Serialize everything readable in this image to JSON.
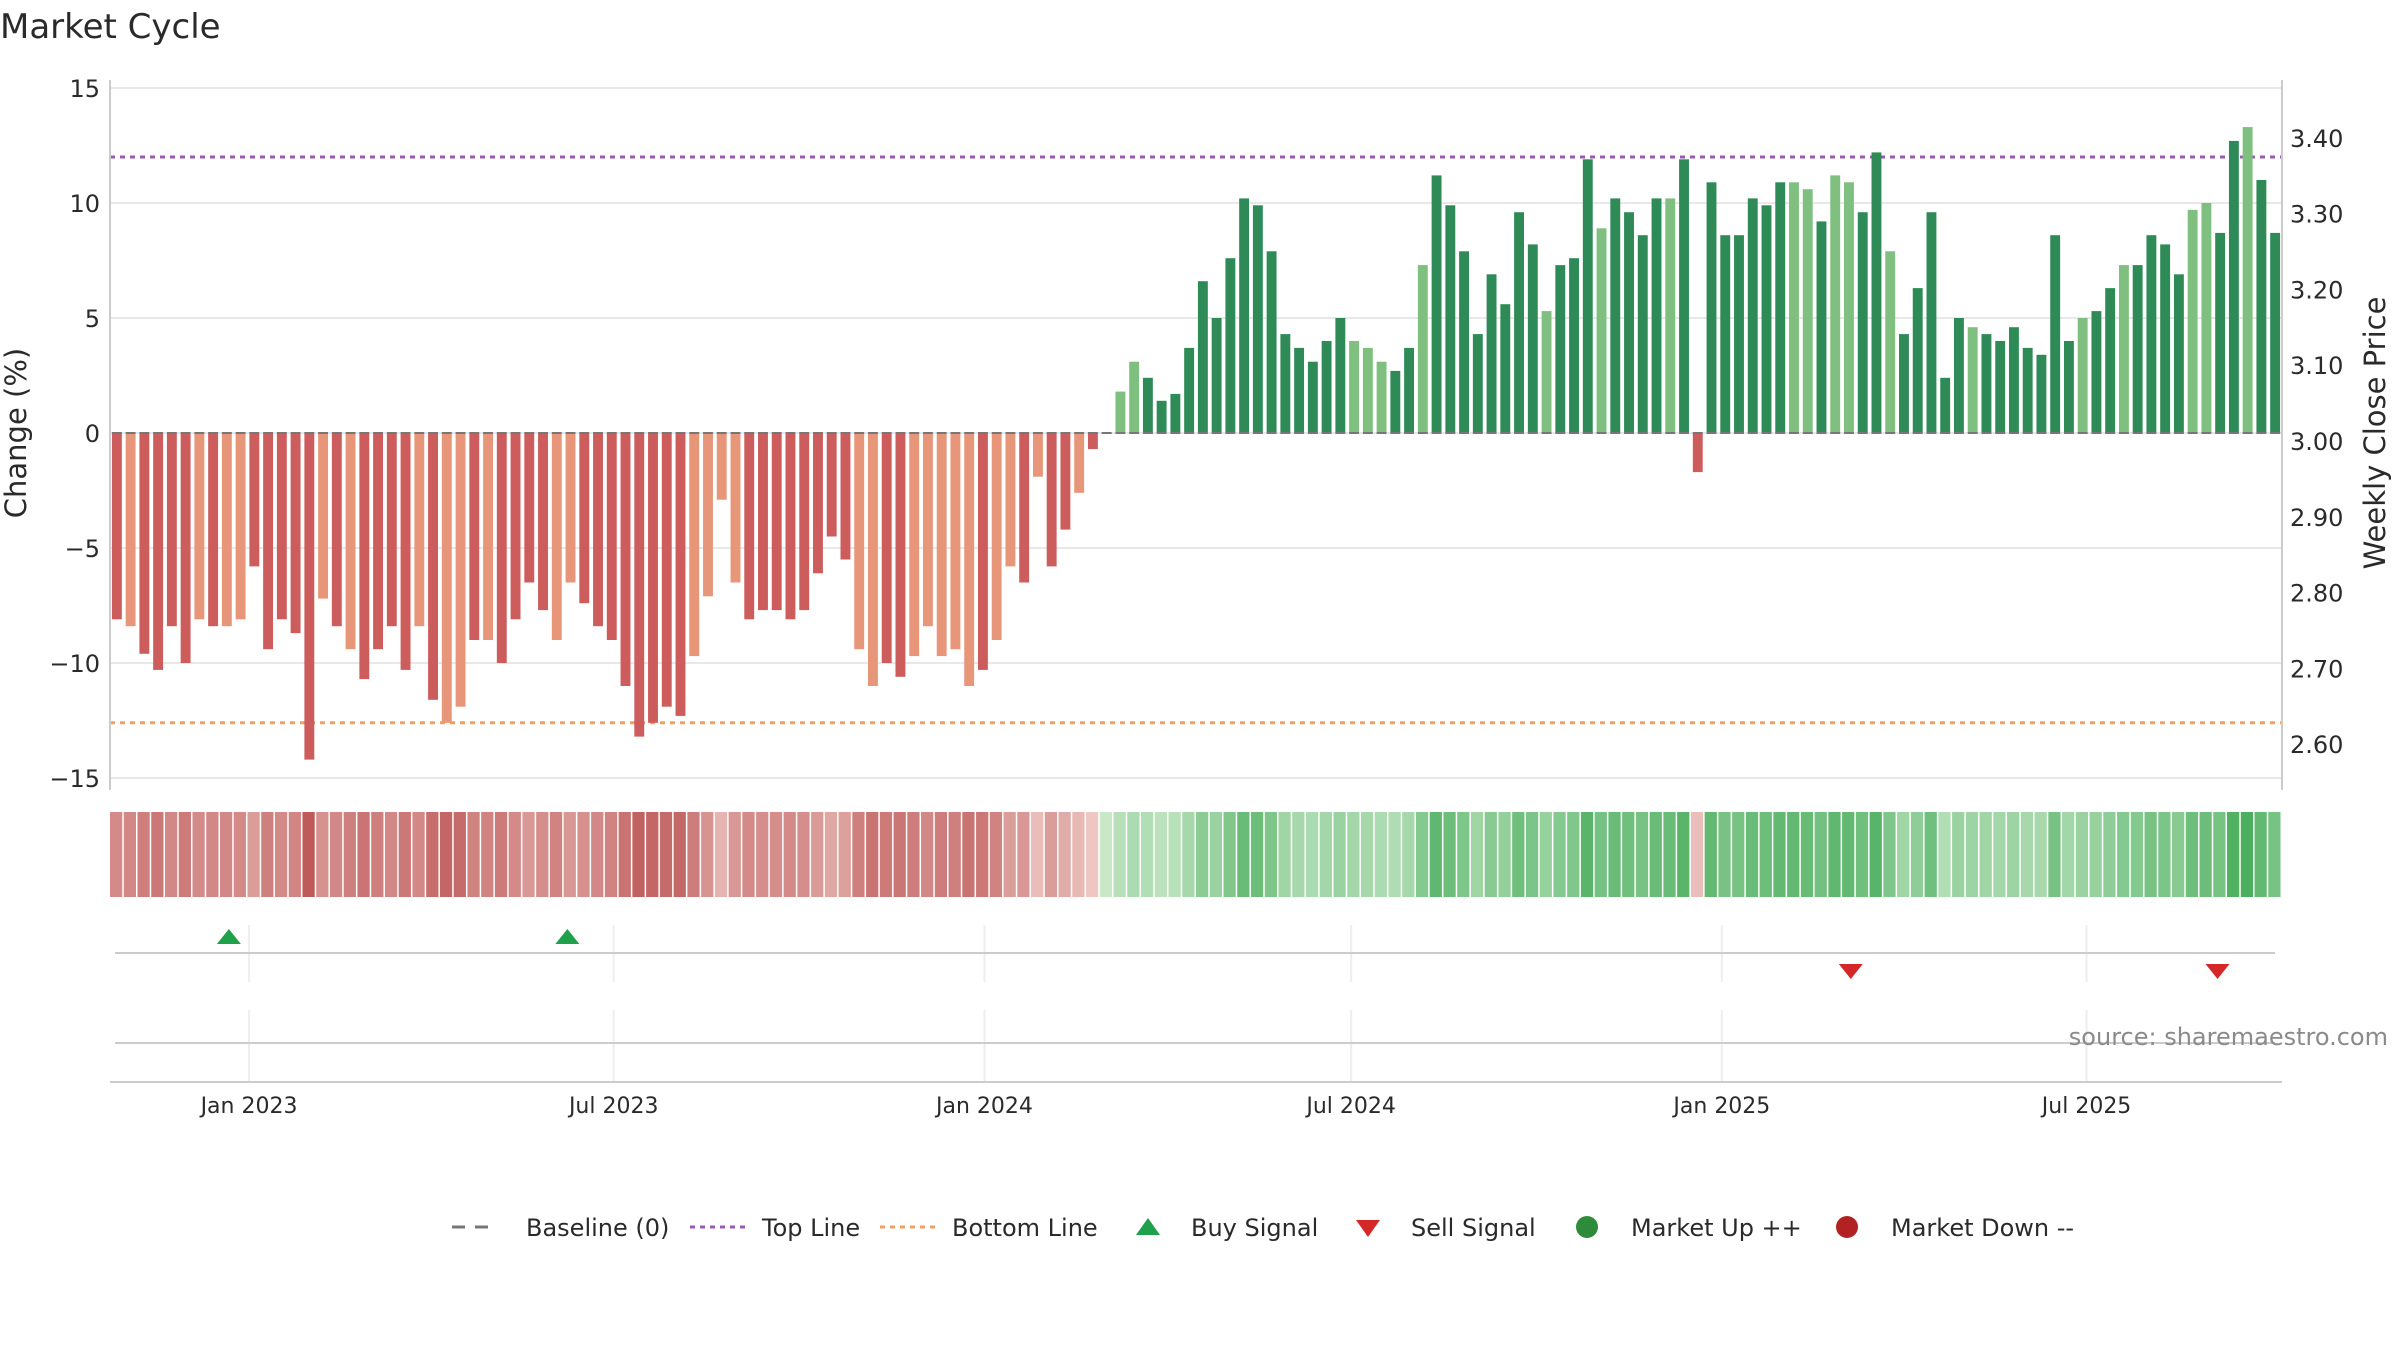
{
  "chart_data": {
    "type": "bar",
    "title": "Market Cycle",
    "ylabel_left": "Change (%)",
    "ylabel_right": "Weekly Close Price",
    "source": "source: sharemaestro.com",
    "left_axis": {
      "ylim": [
        -15,
        15
      ],
      "ticks": [
        15,
        10,
        5,
        0,
        -5,
        -10,
        -15
      ],
      "tick_labels": [
        "15",
        "10",
        "5",
        "0",
        "−5",
        "−10",
        "−15"
      ]
    },
    "right_axis": {
      "ylim": [
        2.55,
        3.45
      ],
      "ticks": [
        3.4,
        3.3,
        3.2,
        3.1,
        3.0,
        2.9,
        2.8,
        2.7,
        2.6
      ],
      "tick_labels": [
        "3.40",
        "3.30",
        "3.20",
        "3.10",
        "3.00",
        "2.90",
        "2.80",
        "2.70",
        "2.60"
      ]
    },
    "x_ticks": [
      {
        "date": "2023-01-01",
        "label": "Jan 2023"
      },
      {
        "date": "2023-07-01",
        "label": "Jul 2023"
      },
      {
        "date": "2024-01-01",
        "label": "Jan 2024"
      },
      {
        "date": "2024-07-01",
        "label": "Jul 2024"
      },
      {
        "date": "2025-01-01",
        "label": "Jan 2025"
      },
      {
        "date": "2025-07-01",
        "label": "Jul 2025"
      }
    ],
    "x_range": [
      "2022-10-24",
      "2025-10-06"
    ],
    "top_line": 12.0,
    "bottom_line": -12.6,
    "baseline": 0,
    "first_week": "2022-10-27",
    "values": [
      -8.1,
      -8.4,
      -9.6,
      -10.3,
      -8.4,
      -10.0,
      -8.1,
      -8.4,
      -8.4,
      -8.1,
      -5.8,
      -9.4,
      -8.1,
      -8.7,
      -14.2,
      -7.2,
      -8.4,
      -9.4,
      -10.7,
      -9.4,
      -8.4,
      -10.3,
      -8.4,
      -11.6,
      -12.6,
      -11.9,
      -9.0,
      -9.0,
      -10.0,
      -8.1,
      -6.5,
      -7.7,
      -9.0,
      -6.5,
      -7.4,
      -8.4,
      -9.0,
      -11.0,
      -13.2,
      -12.6,
      -11.9,
      -12.3,
      -9.7,
      -7.1,
      -2.9,
      -6.5,
      -8.1,
      -7.7,
      -7.7,
      -8.1,
      -7.7,
      -6.1,
      -4.5,
      -5.5,
      -9.4,
      -11.0,
      -10.0,
      -10.6,
      -9.7,
      -8.4,
      -9.7,
      -9.4,
      -11.0,
      -10.3,
      -9.0,
      -5.8,
      -6.5,
      -1.9,
      -5.8,
      -4.2,
      -2.6,
      -0.7,
      0.0,
      1.8,
      3.1,
      2.4,
      1.4,
      1.7,
      3.7,
      6.6,
      5.0,
      7.6,
      10.2,
      9.9,
      7.9,
      4.3,
      3.7,
      3.1,
      4.0,
      5.0,
      4.0,
      3.7,
      3.1,
      2.7,
      3.7,
      7.3,
      11.2,
      9.9,
      7.9,
      4.3,
      6.9,
      5.6,
      9.6,
      8.2,
      5.3,
      7.3,
      7.6,
      11.9,
      8.9,
      10.2,
      9.6,
      8.6,
      10.2,
      10.2,
      11.9,
      -1.7,
      10.9,
      8.6,
      8.6,
      10.2,
      9.9,
      10.9,
      10.9,
      10.6,
      9.2,
      11.2,
      10.9,
      9.6,
      12.2,
      7.9,
      4.3,
      6.3,
      9.6,
      2.4,
      5.0,
      4.6,
      4.3,
      4.0,
      4.6,
      3.7,
      3.4,
      8.6,
      4.0,
      5.0,
      5.3,
      6.3,
      7.3,
      7.3,
      8.6,
      8.2,
      6.9,
      9.7,
      10.0,
      8.7,
      12.7,
      13.3,
      11.0,
      8.7
    ],
    "buy_signals": [
      "2022-12-22",
      "2023-06-08"
    ],
    "sell_signals": [
      "2025-03-06",
      "2025-09-04"
    ],
    "legend": [
      {
        "label": "Baseline (0)",
        "symbol": "dash",
        "color": "#777777"
      },
      {
        "label": "Top Line",
        "symbol": "dot",
        "color": "#9b59b6"
      },
      {
        "label": "Bottom Line",
        "symbol": "dot",
        "color": "#f0a060"
      },
      {
        "label": "Buy Signal",
        "symbol": "triangle-up",
        "color": "#1fa04a"
      },
      {
        "label": "Sell Signal",
        "symbol": "triangle-down",
        "color": "#d62728"
      },
      {
        "label": "Market Up ++",
        "symbol": "circle",
        "color": "#2e8b3c"
      },
      {
        "label": "Market Down --",
        "symbol": "circle",
        "color": "#b22222"
      }
    ],
    "colors": {
      "down_strong": "#cd5c5c",
      "down_mild": "#e8967a",
      "up_strong": "#2e8b57",
      "up_mild": "#7fbf7f",
      "grid": "#e8e8e8",
      "top_line": "#9b59b6",
      "bottom_line": "#f0a060",
      "baseline": "#777777",
      "buy": "#1fa04a",
      "sell": "#d62728"
    }
  }
}
